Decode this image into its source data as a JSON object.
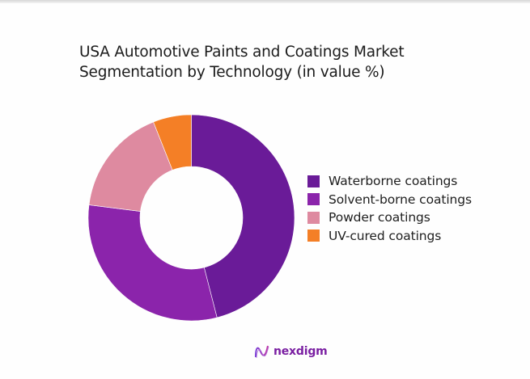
{
  "title_line1": "USA Automotive Paints and Coatings Market",
  "title_line2": "Segmentation by Technology (in value %)",
  "logo": {
    "text": "nexdigm",
    "icon": "nexdigm-wave-icon"
  },
  "chart_data": {
    "type": "pie",
    "variant": "donut",
    "title": "USA Automotive Paints and Coatings Market Segmentation by Technology (in value %)",
    "categories": [
      "Waterborne coatings",
      "Solvent-borne coatings",
      "Powder coatings",
      "UV-cured coatings"
    ],
    "values": [
      46,
      31,
      17,
      6
    ],
    "colors": [
      "#6a1b98",
      "#8b24ab",
      "#de8aa0",
      "#f47f26"
    ],
    "legend_position": "right",
    "start_angle": "top, clockwise",
    "data_labels": false
  },
  "legend": [
    {
      "label": "Waterborne coatings",
      "color": "#6a1b98"
    },
    {
      "label": "Solvent-borne coatings",
      "color": "#8b24ab"
    },
    {
      "label": "Powder coatings",
      "color": "#de8aa0"
    },
    {
      "label": "UV-cured coatings",
      "color": "#f47f26"
    }
  ]
}
